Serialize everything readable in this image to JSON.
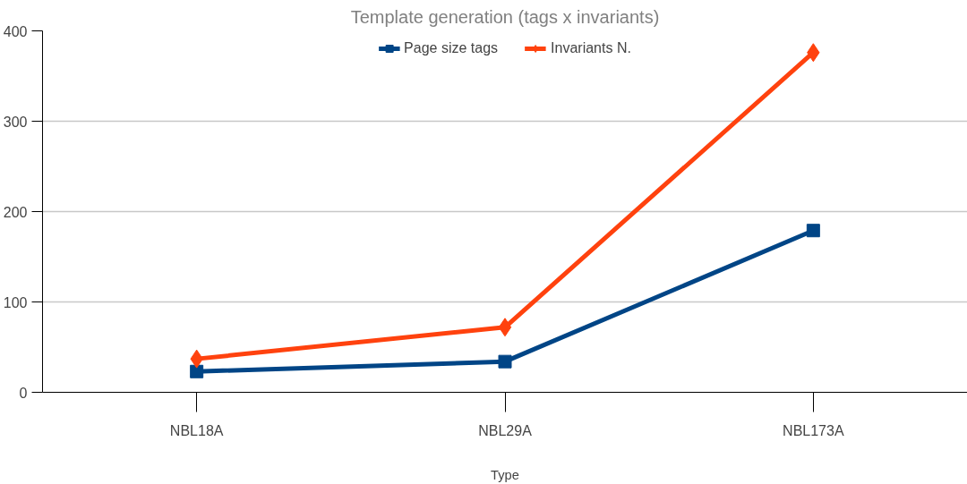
{
  "chart_data": {
    "type": "line",
    "title": "Template generation (tags x invariants)",
    "xlabel": "Type",
    "categories": [
      "NBL18A",
      "NBL29A",
      "NBL173A"
    ],
    "series": [
      {
        "name": "Page size tags",
        "color": "#004586",
        "marker": "square",
        "values": [
          23,
          34,
          179
        ]
      },
      {
        "name": "Invariants N.",
        "color": "#ff420e",
        "marker": "diamond",
        "values": [
          37,
          72,
          376
        ]
      }
    ],
    "ylim": [
      0,
      400
    ],
    "yticks": [
      0,
      100,
      200,
      300,
      400
    ],
    "grid": "y",
    "legend": "top",
    "line_style": "solid"
  }
}
